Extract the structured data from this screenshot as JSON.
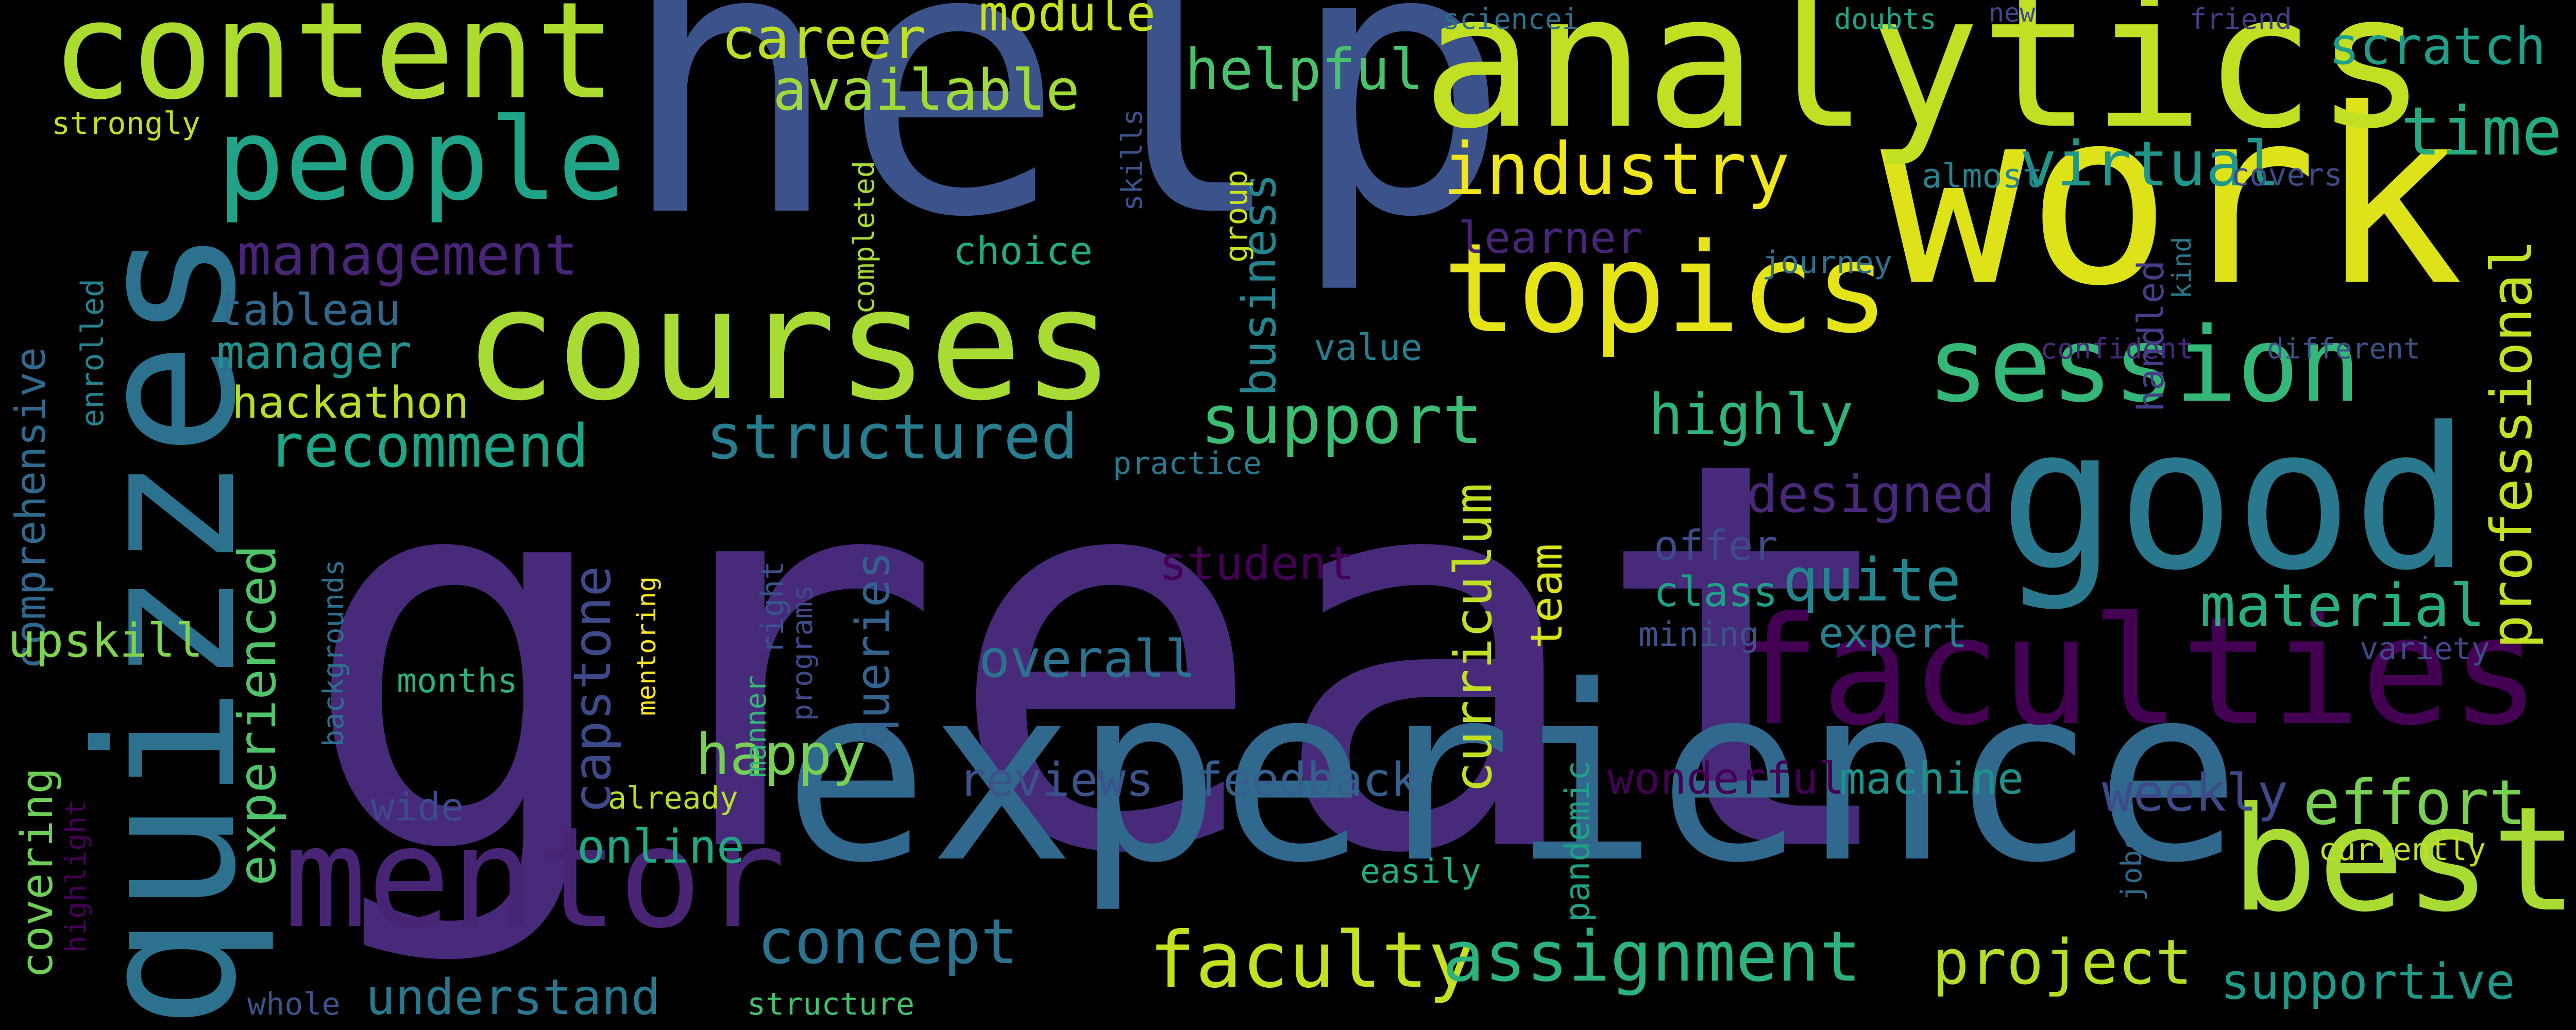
{
  "words": [
    {
      "text": "great",
      "color": "#472a7a",
      "orientation": "horizontal"
    },
    {
      "text": "help",
      "color": "#3b528b",
      "orientation": "horizontal"
    },
    {
      "text": "experience",
      "color": "#31688e",
      "orientation": "horizontal"
    },
    {
      "text": "work",
      "color": "#dde318",
      "orientation": "horizontal"
    },
    {
      "text": "analytics",
      "color": "#c2df23",
      "orientation": "horizontal"
    },
    {
      "text": "quizzes",
      "color": "#2c728e",
      "orientation": "vertical"
    },
    {
      "text": "courses",
      "color": "#a8db34",
      "orientation": "horizontal"
    },
    {
      "text": "content",
      "color": "#addc30",
      "orientation": "horizontal"
    },
    {
      "text": "good",
      "color": "#2a788e",
      "orientation": "horizontal"
    },
    {
      "text": "faculties",
      "color": "#440154",
      "orientation": "horizontal"
    },
    {
      "text": "mentor",
      "color": "#482475",
      "orientation": "horizontal"
    },
    {
      "text": "people",
      "color": "#20a386",
      "orientation": "horizontal"
    },
    {
      "text": "topics",
      "color": "#e5e419",
      "orientation": "horizontal"
    },
    {
      "text": "best",
      "color": "#a8db34",
      "orientation": "horizontal"
    },
    {
      "text": "session",
      "color": "#35b779",
      "orientation": "horizontal"
    },
    {
      "text": "industry",
      "color": "#f1e51d",
      "orientation": "horizontal"
    },
    {
      "text": "faculty",
      "color": "#c5e021",
      "orientation": "horizontal"
    },
    {
      "text": "assignment",
      "color": "#2db27d",
      "orientation": "horizontal"
    },
    {
      "text": "project",
      "color": "#b5de2b",
      "orientation": "horizontal"
    },
    {
      "text": "concept",
      "color": "#2c728e",
      "orientation": "horizontal"
    },
    {
      "text": "structured",
      "color": "#287d8e",
      "orientation": "horizontal"
    },
    {
      "text": "management",
      "color": "#482576",
      "orientation": "horizontal"
    },
    {
      "text": "career",
      "color": "#bddf26",
      "orientation": "horizontal"
    },
    {
      "text": "available",
      "color": "#a0da39",
      "orientation": "horizontal"
    },
    {
      "text": "module",
      "color": "#c8e020",
      "orientation": "horizontal"
    },
    {
      "text": "helpful",
      "color": "#4ac16d",
      "orientation": "horizontal"
    },
    {
      "text": "virtual",
      "color": "#1f968b",
      "orientation": "horizontal"
    },
    {
      "text": "time",
      "color": "#25ab82",
      "orientation": "horizontal"
    },
    {
      "text": "scratch",
      "color": "#1f9e89",
      "orientation": "horizontal"
    },
    {
      "text": "support",
      "color": "#3dbc74",
      "orientation": "horizontal"
    },
    {
      "text": "highly",
      "color": "#2fb47c",
      "orientation": "horizontal"
    },
    {
      "text": "designed",
      "color": "#482878",
      "orientation": "horizontal"
    },
    {
      "text": "quite",
      "color": "#25858e",
      "orientation": "horizontal"
    },
    {
      "text": "material",
      "color": "#29af7f",
      "orientation": "horizontal"
    },
    {
      "text": "professional",
      "color": "#c5e021",
      "orientation": "vertical"
    },
    {
      "text": "effort",
      "color": "#7ad151",
      "orientation": "horizontal"
    },
    {
      "text": "weekly",
      "color": "#3e4a89",
      "orientation": "horizontal"
    },
    {
      "text": "supportive",
      "color": "#1f9a8a",
      "orientation": "horizontal"
    },
    {
      "text": "recommend",
      "color": "#20a486",
      "orientation": "horizontal"
    },
    {
      "text": "hackathon",
      "color": "#b8de29",
      "orientation": "horizontal"
    },
    {
      "text": "tableau",
      "color": "#31688e",
      "orientation": "horizontal"
    },
    {
      "text": "manager",
      "color": "#21918c",
      "orientation": "horizontal"
    },
    {
      "text": "experienced",
      "color": "#50c46a",
      "orientation": "vertical"
    },
    {
      "text": "comprehensive",
      "color": "#30698e",
      "orientation": "vertical"
    },
    {
      "text": "covering",
      "color": "#6ece58",
      "orientation": "vertical"
    },
    {
      "text": "upskill",
      "color": "#7fd34e",
      "orientation": "horizontal"
    },
    {
      "text": "capstone",
      "color": "#3e4989",
      "orientation": "vertical"
    },
    {
      "text": "queries",
      "color": "#33638d",
      "orientation": "vertical"
    },
    {
      "text": "happy",
      "color": "#75d054",
      "orientation": "horizontal"
    },
    {
      "text": "overall",
      "color": "#2c728e",
      "orientation": "horizontal"
    },
    {
      "text": "student",
      "color": "#440154",
      "orientation": "horizontal"
    },
    {
      "text": "online",
      "color": "#22a785",
      "orientation": "horizontal"
    },
    {
      "text": "understand",
      "color": "#2a788e",
      "orientation": "horizontal"
    },
    {
      "text": "feedback",
      "color": "#355f8d",
      "orientation": "horizontal"
    },
    {
      "text": "reviews",
      "color": "#3b528b",
      "orientation": "horizontal"
    },
    {
      "text": "curriculum",
      "color": "#c0df25",
      "orientation": "vertical"
    },
    {
      "text": "team",
      "color": "#dae319",
      "orientation": "vertical"
    },
    {
      "text": "business",
      "color": "#25848e",
      "orientation": "vertical"
    },
    {
      "text": "wonderful",
      "color": "#440154",
      "orientation": "horizontal"
    },
    {
      "text": "machine",
      "color": "#21918c",
      "orientation": "horizontal"
    },
    {
      "text": "expert",
      "color": "#287d8e",
      "orientation": "horizontal"
    },
    {
      "text": "class",
      "color": "#1fa187",
      "orientation": "horizontal"
    },
    {
      "text": "offer",
      "color": "#3e4a89",
      "orientation": "horizontal"
    },
    {
      "text": "mining",
      "color": "#3b528b",
      "orientation": "horizontal"
    },
    {
      "text": "value",
      "color": "#287d8e",
      "orientation": "horizontal"
    },
    {
      "text": "choice",
      "color": "#25ab82",
      "orientation": "horizontal"
    },
    {
      "text": "learner",
      "color": "#482475",
      "orientation": "horizontal"
    },
    {
      "text": "journey",
      "color": "#2d708e",
      "orientation": "horizontal"
    },
    {
      "text": "almost",
      "color": "#26828e",
      "orientation": "horizontal"
    },
    {
      "text": "covers",
      "color": "#3e4a89",
      "orientation": "horizontal"
    },
    {
      "text": "confident",
      "color": "#482878",
      "orientation": "horizontal"
    },
    {
      "text": "different",
      "color": "#3b528b",
      "orientation": "horizontal"
    },
    {
      "text": "handled",
      "color": "#433e85",
      "orientation": "vertical"
    },
    {
      "text": "kind",
      "color": "#2a788e",
      "orientation": "vertical"
    },
    {
      "text": "variety",
      "color": "#3e4989",
      "orientation": "horizontal"
    },
    {
      "text": "currently",
      "color": "#c2df23",
      "orientation": "horizontal"
    },
    {
      "text": "jobs",
      "color": "#31688e",
      "orientation": "vertical"
    },
    {
      "text": "months",
      "color": "#2db27d",
      "orientation": "horizontal"
    },
    {
      "text": "wide",
      "color": "#3e4a89",
      "orientation": "horizontal"
    },
    {
      "text": "already",
      "color": "#b5de2b",
      "orientation": "horizontal"
    },
    {
      "text": "easily",
      "color": "#25ab82",
      "orientation": "horizontal"
    },
    {
      "text": "pandemic",
      "color": "#1fa187",
      "orientation": "vertical"
    },
    {
      "text": "whole",
      "color": "#3b528b",
      "orientation": "horizontal"
    },
    {
      "text": "structure",
      "color": "#46c06f",
      "orientation": "horizontal"
    },
    {
      "text": "practice",
      "color": "#2a788e",
      "orientation": "horizontal"
    },
    {
      "text": "right",
      "color": "#3b528b",
      "orientation": "vertical"
    },
    {
      "text": "manner",
      "color": "#35b779",
      "orientation": "vertical"
    },
    {
      "text": "programs",
      "color": "#3e4a89",
      "orientation": "vertical"
    },
    {
      "text": "mentoring",
      "color": "#fde725",
      "orientation": "vertical"
    },
    {
      "text": "backgrounds",
      "color": "#2d708e",
      "orientation": "vertical"
    },
    {
      "text": "highlight",
      "color": "#440154",
      "orientation": "vertical"
    },
    {
      "text": "enrolled",
      "color": "#26828e",
      "orientation": "vertical"
    },
    {
      "text": "strongly",
      "color": "#c2df23",
      "orientation": "horizontal"
    },
    {
      "text": "completed",
      "color": "#a8db34",
      "orientation": "vertical"
    },
    {
      "text": "skills",
      "color": "#3b528b",
      "orientation": "vertical"
    },
    {
      "text": "group",
      "color": "#c8e020",
      "orientation": "vertical"
    },
    {
      "text": "sciencei",
      "color": "#2d708e",
      "orientation": "horizontal"
    },
    {
      "text": "doubts",
      "color": "#20a386",
      "orientation": "horizontal"
    },
    {
      "text": "new",
      "color": "#3e4a89",
      "orientation": "horizontal"
    },
    {
      "text": "friend",
      "color": "#433e85",
      "orientation": "horizontal"
    }
  ]
}
